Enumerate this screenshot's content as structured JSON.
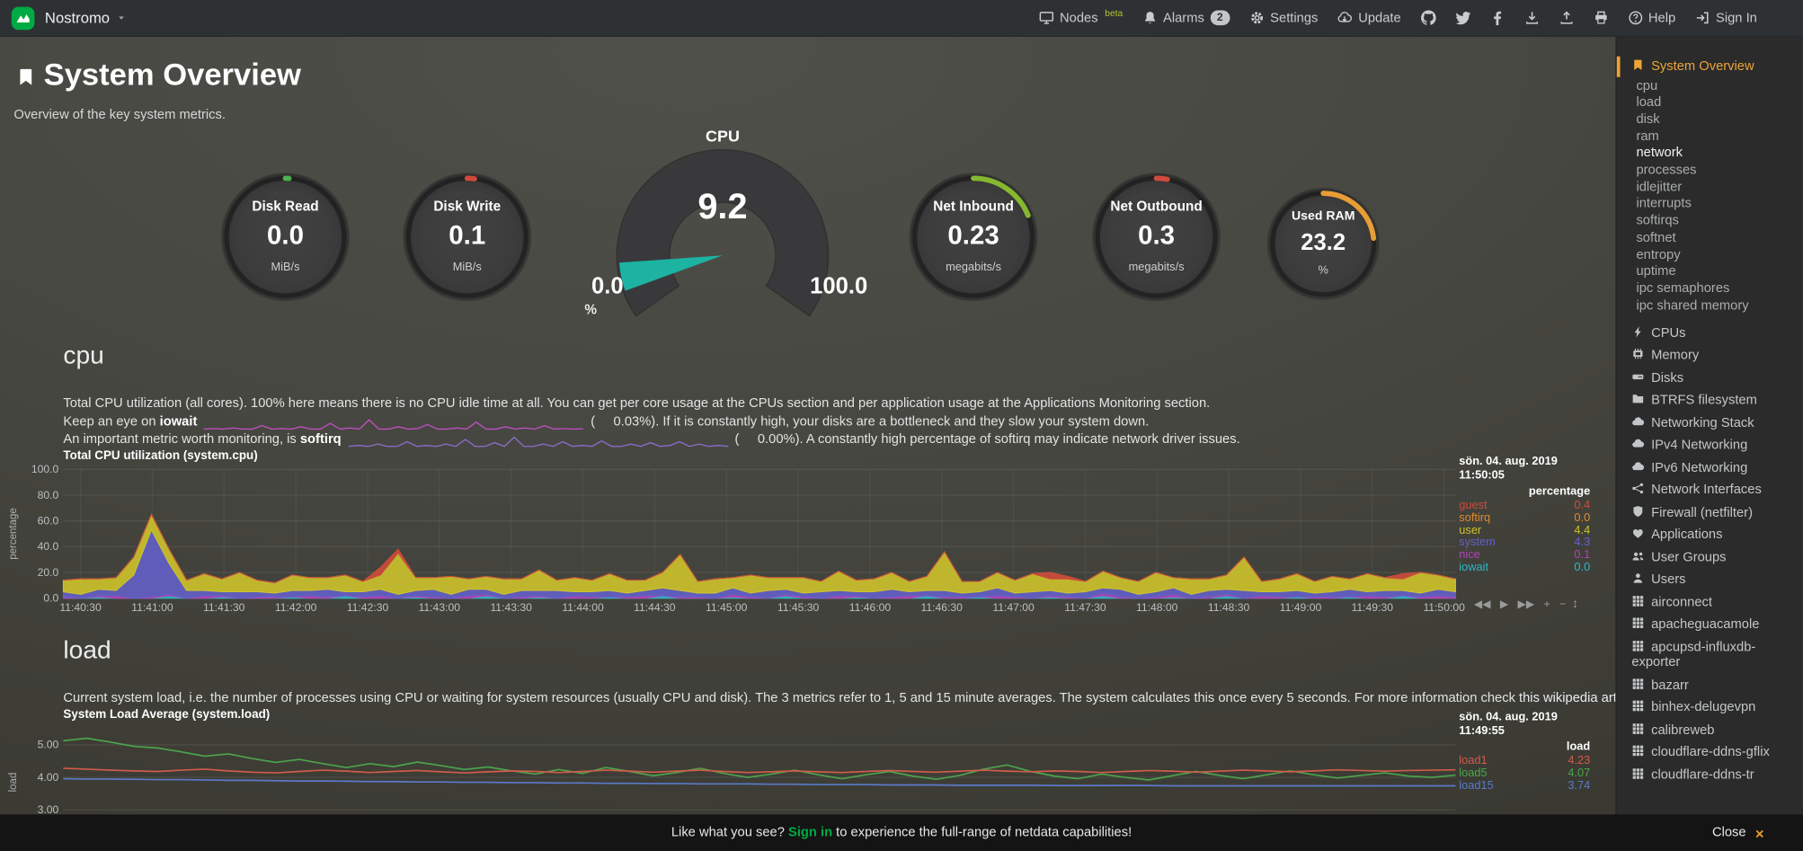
{
  "topbar": {
    "hostname": "Nostromo",
    "nodes_label": "Nodes",
    "nodes_beta": "beta",
    "alarms_label": "Alarms",
    "alarms_count": "2",
    "settings_label": "Settings",
    "update_label": "Update",
    "help_label": "Help",
    "signin_label": "Sign In"
  },
  "page": {
    "title": "System Overview",
    "subtitle": "Overview of the key system metrics."
  },
  "gauges": {
    "small": [
      {
        "title": "Disk Read",
        "value": "0.0",
        "unit": "MiB/s",
        "color": "#4FAF4F",
        "fraction": 0.01
      },
      {
        "title": "Disk Write",
        "value": "0.1",
        "unit": "MiB/s",
        "color": "#D0493C",
        "fraction": 0.02
      },
      {
        "title": "Net Inbound",
        "value": "0.23",
        "unit": "megabits/s",
        "color": "#85B82F",
        "fraction": 0.19
      },
      {
        "title": "Net Outbound",
        "value": "0.3",
        "unit": "megabits/s",
        "color": "#D0493C",
        "fraction": 0.03
      },
      {
        "title": "Used RAM",
        "value": "23.2",
        "unit": "%",
        "color": "#E89D35",
        "fraction": 0.232
      }
    ],
    "cpu_gauge": {
      "title": "CPU",
      "value": "9.2",
      "min": "0.0",
      "max": "100.0",
      "unit": "%",
      "fraction": 0.092,
      "pointer_color": "#1CB3A3"
    }
  },
  "cpu_section": {
    "heading": "cpu",
    "line1": "Total CPU utilization (all cores). 100% here means there is no CPU idle time at all. You can get per core usage at the CPUs section and per application usage at the Applications Monitoring section.",
    "line2_pre": "Keep an eye on ",
    "line2_bold": "iowait",
    "line2_val": "(     0.03%).",
    "line2_post": " If it is constantly high, your disks are a bottleneck and they slow your system down.",
    "line3_pre": "An important metric worth monitoring, is ",
    "line3_bold": "softirq",
    "line3_val": "(     0.00%).",
    "line3_post": " A constantly high percentage of softirq may indicate network driver issues."
  },
  "load_section": {
    "heading": "load",
    "desc_pre": "Current system load, i.e. the number of processes using CPU or waiting for system resources (usually CPU and disk). The 3 metrics refer to 1, 5 and 15 minute averages. The system calculates this once every 5 seconds. For more information check ",
    "desc_link": "this wikipedia article"
  },
  "toolbox": {
    "rewind": "◀◀",
    "play": "▶",
    "forward": "▶▶",
    "zoom_in": "+",
    "zoom_out": "−",
    "resize": "↕"
  },
  "footer": {
    "msg_pre": "Like what you see? ",
    "signin": "Sign in",
    "msg_post": " to experience the full-range of netdata capabilities!",
    "close_label": "Close",
    "close_x": "×"
  },
  "sidebar": {
    "items": [
      {
        "label": "System Overview",
        "icon": "bookmark",
        "type": "section",
        "active": true
      },
      {
        "label": "cpu",
        "type": "sub"
      },
      {
        "label": "load",
        "type": "sub"
      },
      {
        "label": "disk",
        "type": "sub"
      },
      {
        "label": "ram",
        "type": "sub"
      },
      {
        "label": "network",
        "type": "sub",
        "active": true
      },
      {
        "label": "processes",
        "type": "sub"
      },
      {
        "label": "idlejitter",
        "type": "sub"
      },
      {
        "label": "interrupts",
        "type": "sub"
      },
      {
        "label": "softirqs",
        "type": "sub"
      },
      {
        "label": "softnet",
        "type": "sub"
      },
      {
        "label": "entropy",
        "type": "sub"
      },
      {
        "label": "uptime",
        "type": "sub"
      },
      {
        "label": "ipc semaphores",
        "type": "sub"
      },
      {
        "label": "ipc shared memory",
        "type": "sub"
      },
      {
        "label": "CPUs",
        "icon": "bolt",
        "type": "section"
      },
      {
        "label": "Memory",
        "icon": "memory",
        "type": "section"
      },
      {
        "label": "Disks",
        "icon": "hdd",
        "type": "section"
      },
      {
        "label": "BTRFS filesystem",
        "icon": "folder",
        "type": "section"
      },
      {
        "label": "Networking Stack",
        "icon": "cloud",
        "type": "section"
      },
      {
        "label": "IPv4 Networking",
        "icon": "cloud",
        "type": "section"
      },
      {
        "label": "IPv6 Networking",
        "icon": "cloud",
        "type": "section"
      },
      {
        "label": "Network Interfaces",
        "icon": "network",
        "type": "section"
      },
      {
        "label": "Firewall (netfilter)",
        "icon": "shield",
        "type": "section"
      },
      {
        "label": "Applications",
        "icon": "heart",
        "type": "section"
      },
      {
        "label": "User Groups",
        "icon": "users",
        "type": "section"
      },
      {
        "label": "Users",
        "icon": "user",
        "type": "section"
      },
      {
        "label": "airconnect",
        "icon": "grid",
        "type": "section"
      },
      {
        "label": "apacheguacamole",
        "icon": "grid",
        "type": "section"
      },
      {
        "label": "apcupsd-influxdb-exporter",
        "icon": "grid",
        "type": "section"
      },
      {
        "label": "bazarr",
        "icon": "grid",
        "type": "section"
      },
      {
        "label": "binhex-delugevpn",
        "icon": "grid",
        "type": "section"
      },
      {
        "label": "calibreweb",
        "icon": "grid",
        "type": "section"
      },
      {
        "label": "cloudflare-ddns-gflix",
        "icon": "grid",
        "type": "section"
      },
      {
        "label": "cloudflare-ddns-tr",
        "icon": "grid",
        "type": "section"
      }
    ]
  },
  "chart_data": [
    {
      "name": "system.cpu",
      "type": "stacked-area",
      "title": "Total CPU utilization (system.cpu)",
      "date": "sön. 04. aug. 2019",
      "time": "11:50:05",
      "units": "percentage",
      "ylabel": "percentage",
      "ylim": [
        0,
        100
      ],
      "yticks": [
        0,
        20,
        40,
        60,
        80,
        100
      ],
      "ytick_labels": [
        "0.0",
        "20.0",
        "40.0",
        "60.0",
        "80.0",
        "100.0"
      ],
      "xticks": [
        "11:40:30",
        "11:41:00",
        "11:41:30",
        "11:42:00",
        "11:42:30",
        "11:43:00",
        "11:43:30",
        "11:44:00",
        "11:44:30",
        "11:45:00",
        "11:45:30",
        "11:46:00",
        "11:46:30",
        "11:47:00",
        "11:47:30",
        "11:48:00",
        "11:48:30",
        "11:49:00",
        "11:49:30",
        "11:50:00"
      ],
      "legend": [
        {
          "name": "guest",
          "value": "0.4",
          "color": "#CE4B3B"
        },
        {
          "name": "softirq",
          "value": "0.0",
          "color": "#E08A2E"
        },
        {
          "name": "user",
          "value": "4.4",
          "color": "#CDC32B"
        },
        {
          "name": "system",
          "value": "4.3",
          "color": "#6460C8"
        },
        {
          "name": "nice",
          "value": "0.1",
          "color": "#B044B8"
        },
        {
          "name": "iowait",
          "value": "0.0",
          "color": "#2FB6C6"
        }
      ],
      "series": [
        {
          "name": "iowait",
          "color": "#2FB6C6",
          "values": [
            0,
            0,
            1,
            0,
            0,
            0,
            2,
            0,
            0,
            1,
            0,
            0,
            0,
            1,
            0,
            0,
            2,
            0,
            0,
            0,
            1,
            0,
            0,
            0,
            2,
            0,
            0,
            1,
            0,
            0,
            0,
            1,
            0,
            0,
            2,
            0,
            0,
            0,
            1,
            0,
            0,
            2,
            0,
            0,
            0,
            1,
            0,
            0,
            0,
            2,
            0,
            0,
            1,
            0,
            0,
            0,
            1,
            0,
            0,
            2,
            0,
            0,
            0,
            1,
            0,
            0,
            2,
            0,
            0,
            0,
            1,
            0,
            0,
            1,
            0,
            0,
            2,
            0,
            0,
            0
          ]
        },
        {
          "name": "nice",
          "color": "#B044B8",
          "values": [
            1,
            0,
            1,
            2,
            0,
            1,
            1,
            0,
            2,
            1,
            0,
            1,
            1,
            0,
            2,
            1,
            0,
            1,
            2,
            0,
            1,
            1,
            0,
            2,
            1,
            0,
            1,
            1,
            0,
            2,
            1,
            0,
            1,
            2,
            0,
            1,
            1,
            0,
            2,
            1,
            0,
            1,
            1,
            0,
            2,
            1,
            0,
            1,
            2,
            0,
            1,
            1,
            0,
            2,
            1,
            0,
            1,
            1,
            0,
            2,
            1,
            0,
            1,
            2,
            0,
            1,
            1,
            0,
            2,
            1,
            0,
            1,
            1,
            0,
            2,
            1,
            0,
            1,
            2,
            1
          ]
        },
        {
          "name": "system",
          "color": "#6460C8",
          "values": [
            4,
            3,
            5,
            4,
            18,
            52,
            24,
            6,
            4,
            3,
            5,
            4,
            3,
            5,
            4,
            6,
            3,
            4,
            5,
            3,
            4,
            6,
            3,
            5,
            4,
            3,
            5,
            4,
            6,
            3,
            4,
            5,
            3,
            4,
            6,
            5,
            3,
            4,
            5,
            3,
            6,
            4,
            3,
            5,
            4,
            3,
            5,
            6,
            3,
            4,
            5,
            3,
            4,
            6,
            3,
            5,
            4,
            3,
            5,
            4,
            6,
            3,
            4,
            5,
            3,
            5,
            4,
            6,
            3,
            4,
            5,
            3,
            4,
            6,
            3,
            5,
            4,
            3,
            5,
            4
          ]
        },
        {
          "name": "user",
          "color": "#CDC32B",
          "values": [
            9,
            12,
            8,
            10,
            14,
            12,
            11,
            8,
            13,
            10,
            15,
            9,
            8,
            12,
            10,
            9,
            13,
            8,
            11,
            32,
            10,
            9,
            14,
            8,
            10,
            12,
            9,
            16,
            8,
            11,
            9,
            13,
            10,
            8,
            12,
            28,
            9,
            11,
            8,
            14,
            10,
            9,
            12,
            8,
            15,
            9,
            10,
            13,
            8,
            11,
            30,
            9,
            8,
            12,
            10,
            14,
            9,
            11,
            8,
            13,
            9,
            10,
            15,
            8,
            12,
            9,
            11,
            26,
            8,
            10,
            13,
            9,
            12,
            8,
            14,
            10,
            9,
            16,
            11,
            10
          ]
        },
        {
          "name": "guest",
          "color": "#CE4B3B",
          "values": [
            0,
            0,
            0,
            0,
            0,
            0,
            0,
            0,
            0,
            0,
            0,
            0,
            0,
            0,
            0,
            0,
            0,
            0,
            6,
            3,
            0,
            0,
            0,
            0,
            0,
            0,
            0,
            0,
            0,
            0,
            0,
            0,
            0,
            0,
            0,
            0,
            0,
            0,
            0,
            0,
            0,
            0,
            0,
            0,
            0,
            0,
            0,
            0,
            0,
            0,
            0,
            0,
            0,
            0,
            0,
            0,
            5,
            2,
            0,
            0,
            0,
            0,
            0,
            0,
            0,
            0,
            0,
            0,
            0,
            0,
            0,
            0,
            0,
            0,
            0,
            0,
            4,
            0,
            0,
            0
          ]
        }
      ]
    },
    {
      "name": "system.load",
      "type": "line",
      "title": "System Load Average (system.load)",
      "date": "sön. 04. aug. 2019",
      "time": "11:49:55",
      "units": "load",
      "ylabel": "load",
      "ylim": [
        2.3,
        5.4
      ],
      "yticks": [
        3,
        4,
        5
      ],
      "ytick_labels": [
        "3.00",
        "4.00",
        "5.00"
      ],
      "xticks": [],
      "legend": [
        {
          "name": "load1",
          "value": "4.23",
          "color": "#D05B4A"
        },
        {
          "name": "load5",
          "value": "4.07",
          "color": "#4CA44C"
        },
        {
          "name": "load15",
          "value": "3.74",
          "color": "#5B79C9"
        }
      ],
      "series": [
        {
          "name": "load5",
          "color": "#4CA44C",
          "values": [
            5.12,
            5.2,
            5.08,
            4.95,
            4.9,
            4.78,
            4.65,
            4.72,
            4.58,
            4.46,
            4.55,
            4.42,
            4.3,
            4.42,
            4.33,
            4.47,
            4.36,
            4.24,
            4.32,
            4.2,
            4.1,
            4.24,
            4.12,
            4.3,
            4.18,
            4.05,
            4.15,
            4.28,
            4.12,
            4.0,
            4.1,
            4.22,
            4.08,
            3.96,
            4.08,
            4.18,
            4.04,
            3.94,
            4.06,
            4.25,
            4.38,
            4.18,
            4.04,
            3.96,
            4.1,
            4.0,
            3.92,
            4.05,
            4.18,
            4.06,
            3.96,
            4.08,
            4.2,
            4.08,
            3.98,
            4.06,
            4.14,
            4.04,
            4.0,
            4.07
          ]
        },
        {
          "name": "load1",
          "color": "#D05B4A",
          "values": [
            4.28,
            4.25,
            4.22,
            4.2,
            4.18,
            4.22,
            4.25,
            4.2,
            4.16,
            4.14,
            4.18,
            4.22,
            4.19,
            4.15,
            4.18,
            4.21,
            4.17,
            4.14,
            4.17,
            4.2,
            4.18,
            4.15,
            4.18,
            4.22,
            4.19,
            4.16,
            4.19,
            4.22,
            4.18,
            4.15,
            4.17,
            4.2,
            4.17,
            4.15,
            4.18,
            4.21,
            4.18,
            4.16,
            4.19,
            4.22,
            4.19,
            4.17,
            4.2,
            4.18,
            4.15,
            4.18,
            4.21,
            4.19,
            4.16,
            4.19,
            4.22,
            4.2,
            4.17,
            4.2,
            4.23,
            4.21,
            4.19,
            4.21,
            4.22,
            4.23
          ]
        },
        {
          "name": "load15",
          "color": "#5B79C9",
          "values": [
            3.96,
            3.95,
            3.95,
            3.94,
            3.93,
            3.93,
            3.92,
            3.91,
            3.91,
            3.9,
            3.89,
            3.89,
            3.88,
            3.87,
            3.87,
            3.86,
            3.86,
            3.85,
            3.85,
            3.84,
            3.84,
            3.83,
            3.83,
            3.82,
            3.82,
            3.81,
            3.81,
            3.8,
            3.8,
            3.8,
            3.79,
            3.79,
            3.78,
            3.78,
            3.78,
            3.77,
            3.77,
            3.77,
            3.76,
            3.76,
            3.76,
            3.76,
            3.75,
            3.75,
            3.75,
            3.75,
            3.75,
            3.74,
            3.74,
            3.74,
            3.74,
            3.74,
            3.74,
            3.74,
            3.74,
            3.74,
            3.74,
            3.74,
            3.74,
            3.74
          ]
        }
      ]
    },
    {
      "name": "iowait sparkline",
      "type": "sparkline",
      "color": "#C44FC9",
      "ylim": [
        0,
        1
      ],
      "values": [
        0,
        0.05,
        0,
        0.1,
        0,
        0,
        0.3,
        0,
        0.05,
        0,
        0.2,
        0,
        0,
        0.5,
        0,
        0.1,
        0,
        0.8,
        0,
        0,
        0.2,
        0,
        0.05,
        0.4,
        0,
        0,
        0.1,
        0,
        0.6,
        0,
        0,
        0.2,
        0,
        0.1,
        0,
        0.3,
        0,
        0.05,
        0,
        0.03
      ]
    },
    {
      "name": "softirq sparkline",
      "type": "sparkline",
      "color": "#8B6FD0",
      "ylim": [
        0,
        0.25
      ],
      "values": [
        0,
        0.02,
        0,
        0.05,
        0,
        0,
        0.1,
        0,
        0.02,
        0,
        0.05,
        0,
        0.15,
        0,
        0,
        0.08,
        0,
        0.2,
        0,
        0,
        0.05,
        0,
        0.1,
        0,
        0.02,
        0,
        0.12,
        0,
        0,
        0.05,
        0,
        0.08,
        0,
        0.02,
        0.1,
        0,
        0.05,
        0,
        0.02,
        0
      ]
    }
  ]
}
